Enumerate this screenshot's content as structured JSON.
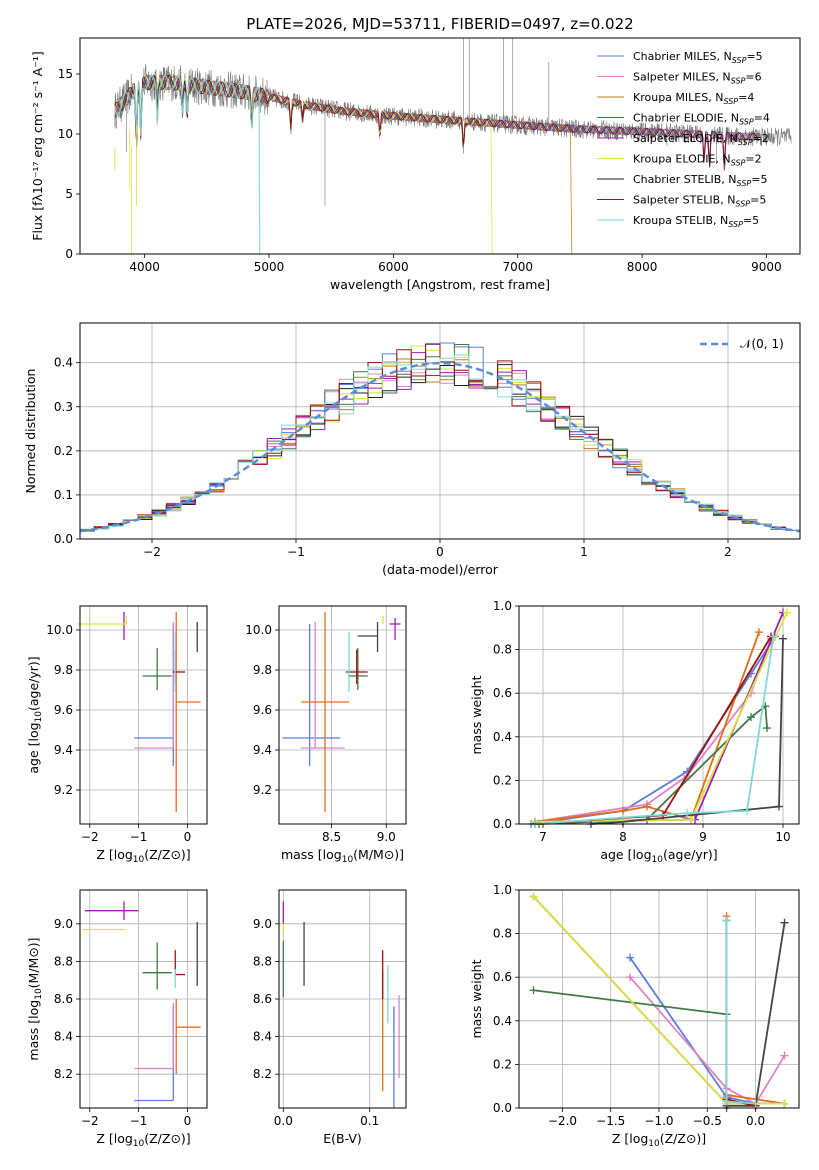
{
  "chart_data": [
    {
      "id": "spec",
      "type": "line",
      "title": "PLATE=2026, MJD=53711, FIBERID=0497, z=0.022",
      "xlabel": "wavelength [Angstrom, rest frame]",
      "ylabel": "Flux [fλ10⁻¹⁷ erg cm⁻² s⁻¹ A⁻¹]",
      "xlim": [
        3480,
        9270
      ],
      "ylim": [
        0,
        18
      ],
      "xticks": [
        4000,
        5000,
        6000,
        7000,
        8000,
        9000
      ],
      "yticks": [
        0,
        5,
        10,
        15
      ],
      "grid": false,
      "legend_position": "top-right",
      "legend": [
        {
          "base": "Chabrier MILES, N",
          "sub": "SSP",
          "val": "=5",
          "color": "#5b7fd6"
        },
        {
          "base": "Salpeter MILES, N",
          "sub": "SSP",
          "val": "=6",
          "color": "#dd83c6"
        },
        {
          "base": "Kroupa MILES, N",
          "sub": "SSP",
          "val": "=4",
          "color": "#c07a1e"
        },
        {
          "base": "Chabrier ELODIE, N",
          "sub": "SSP",
          "val": "=4",
          "color": "#3f7a46"
        },
        {
          "base": "Salpeter ELODIE, N",
          "sub": "SSP",
          "val": "=2",
          "color": "#9e1fb2"
        },
        {
          "base": "Kroupa ELODIE, N",
          "sub": "SSP",
          "val": "=2",
          "color": "#d9e63a"
        },
        {
          "base": "Chabrier STELIB, N",
          "sub": "SSP",
          "val": "=5",
          "color": "#222222"
        },
        {
          "base": "Salpeter STELIB, N",
          "sub": "SSP",
          "val": "=5",
          "color": "#9c1010"
        },
        {
          "base": "Kroupa STELIB, N",
          "sub": "SSP",
          "val": "=5",
          "color": "#7fd9d6"
        }
      ],
      "continuum": [
        [
          3750,
          11.8
        ],
        [
          3900,
          13.5
        ],
        [
          4000,
          14.3
        ],
        [
          4200,
          14.3
        ],
        [
          4500,
          13.9
        ],
        [
          4800,
          13.5
        ],
        [
          5000,
          13.1
        ],
        [
          5300,
          12.4
        ],
        [
          5600,
          11.9
        ],
        [
          6000,
          11.5
        ],
        [
          6400,
          11.2
        ],
        [
          6800,
          10.9
        ],
        [
          7200,
          10.6
        ],
        [
          7500,
          10.4
        ],
        [
          8000,
          10.2
        ],
        [
          8400,
          10.0
        ],
        [
          8800,
          9.8
        ],
        [
          9200,
          9.7
        ]
      ]
    },
    {
      "id": "resid",
      "type": "step",
      "title": "",
      "xlabel": "(data-model)/error",
      "ylabel": "Normed distribution",
      "xlim": [
        -2.5,
        2.5
      ],
      "ylim": [
        0,
        0.49
      ],
      "xticks": [
        -2,
        -1,
        0,
        1,
        2
      ],
      "yticks": [
        0.0,
        0.1,
        0.2,
        0.3,
        0.4
      ],
      "grid": true,
      "legend_position": "top-right",
      "legend_label": "𝒩(0, 1)",
      "bin_width": 0.1
    },
    {
      "id": "age_Z",
      "type": "errorbar",
      "xlabel_main": "Z [log",
      "xlabel_sub": "10",
      "xlabel_rest": "(Z/Z⊙)]",
      "ylabel_main": "age  [log",
      "ylabel_sub": "10",
      "ylabel_rest": "(age/yr)]",
      "xlim": [
        -2.2,
        0.4
      ],
      "ylim": [
        9.03,
        10.12
      ],
      "xticks": [
        -2,
        -1,
        0
      ],
      "yticks": [
        9.2,
        9.4,
        9.6,
        9.8,
        10.0
      ],
      "points": [
        {
          "x": -0.29,
          "y": 9.46,
          "xerr": [
            0.8,
            0.0
          ],
          "yerr": [
            0.14,
            0.57
          ],
          "color": "#5b7fd6"
        },
        {
          "x": -0.29,
          "y": 9.41,
          "xerr": [
            0.8,
            0.0
          ],
          "yerr": [
            0.0,
            0.63
          ],
          "color": "#dd83c6"
        },
        {
          "x": -0.23,
          "y": 9.64,
          "xerr": [
            0.0,
            0.5
          ],
          "yerr": [
            0.55,
            0.45
          ],
          "color": "#e36c1c"
        },
        {
          "x": -0.62,
          "y": 9.77,
          "xerr": [
            0.3,
            0.3
          ],
          "yerr": [
            0.07,
            0.14
          ],
          "color": "#3f7a46"
        },
        {
          "x": -1.3,
          "y": 10.03,
          "xerr": [
            0.0,
            0.0
          ],
          "yerr": [
            0.08,
            0.06
          ],
          "color": "#9e1fb2"
        },
        {
          "x": -1.25,
          "y": 10.03,
          "xerr": [
            1.0,
            0.0
          ],
          "yerr": [
            0.0,
            0.04
          ],
          "color": "#d9e63a"
        },
        {
          "x": 0.2,
          "y": 9.97,
          "xerr": [
            0.0,
            0.0
          ],
          "yerr": [
            0.08,
            0.07
          ],
          "color": "#444444"
        },
        {
          "x": -0.25,
          "y": 9.79,
          "xerr": [
            0.05,
            0.2
          ],
          "yerr": [
            0.06,
            0.11
          ],
          "color": "#9c1010"
        },
        {
          "x": -0.25,
          "y": 9.79,
          "xerr": [
            0.0,
            0.0
          ],
          "yerr": [
            0.1,
            0.2
          ],
          "color": "#7fd9d6"
        }
      ]
    },
    {
      "id": "age_mass",
      "type": "errorbar",
      "xlabel_main": "mass [log",
      "xlabel_sub": "10",
      "xlabel_rest": "(M/M⊙)]",
      "xlim": [
        8.02,
        9.18
      ],
      "ylim": [
        9.03,
        10.12
      ],
      "xticks": [
        8.5,
        9.0
      ],
      "yticks": [
        9.2,
        9.4,
        9.6,
        9.8,
        10.0
      ],
      "points": [
        {
          "x": 8.3,
          "y": 9.46,
          "xerr": [
            0.25,
            0.28
          ],
          "yerr": [
            0.14,
            0.57
          ],
          "color": "#5b7fd6"
        },
        {
          "x": 8.35,
          "y": 9.41,
          "xerr": [
            0.13,
            0.27
          ],
          "yerr": [
            0.0,
            0.63
          ],
          "color": "#dd83c6"
        },
        {
          "x": 8.44,
          "y": 9.64,
          "xerr": [
            0.22,
            0.22
          ],
          "yerr": [
            0.55,
            0.45
          ],
          "color": "#e36c1c"
        },
        {
          "x": 8.74,
          "y": 9.77,
          "xerr": [
            0.09,
            0.09
          ],
          "yerr": [
            0.07,
            0.14
          ],
          "color": "#3f7a46"
        },
        {
          "x": 9.08,
          "y": 10.03,
          "xerr": [
            0.05,
            0.05
          ],
          "yerr": [
            0.08,
            0.03
          ],
          "color": "#9e1fb2"
        },
        {
          "x": 8.97,
          "y": 10.03,
          "xerr": [
            0.0,
            0.0
          ],
          "yerr": [
            0.0,
            0.04
          ],
          "color": "#d9e63a"
        },
        {
          "x": 8.92,
          "y": 9.97,
          "xerr": [
            0.18,
            0.0
          ],
          "yerr": [
            0.08,
            0.07
          ],
          "color": "#444444"
        },
        {
          "x": 8.73,
          "y": 9.79,
          "xerr": [
            0.1,
            0.1
          ],
          "yerr": [
            0.06,
            0.11
          ],
          "color": "#9c1010"
        },
        {
          "x": 8.66,
          "y": 9.79,
          "xerr": [
            0.0,
            0.0
          ],
          "yerr": [
            0.1,
            0.2
          ],
          "color": "#7fd9d6"
        }
      ]
    },
    {
      "id": "mw_age",
      "type": "line",
      "xlabel_main": "age  [log",
      "xlabel_sub": "10",
      "xlabel_rest": "(age/yr)]",
      "ylabel": "mass weight",
      "xlim": [
        6.7,
        10.2
      ],
      "ylim": [
        0,
        1.0
      ],
      "xticks": [
        7,
        8,
        9,
        10
      ],
      "yticks": [
        0.0,
        0.2,
        0.4,
        0.6,
        0.8,
        1.0
      ],
      "grid": true,
      "series": [
        {
          "color": "#5b7fd6",
          "x": [
            6.85,
            8.0,
            8.8,
            9.6,
            9.9
          ],
          "y": [
            0.0,
            0.06,
            0.24,
            0.69,
            0.86
          ]
        },
        {
          "color": "#dd83c6",
          "x": [
            6.9,
            8.3,
            8.8,
            9.6,
            9.85
          ],
          "y": [
            0.01,
            0.09,
            0.22,
            0.6,
            0.85
          ]
        },
        {
          "color": "#e36c1c",
          "x": [
            6.9,
            8.0,
            8.3,
            8.85,
            9.7
          ],
          "y": [
            0.01,
            0.06,
            0.08,
            0.02,
            0.88
          ]
        },
        {
          "color": "#3f7a46",
          "x": [
            6.95,
            8.3,
            9.6,
            9.78,
            9.8
          ],
          "y": [
            0.0,
            0.02,
            0.49,
            0.54,
            0.44
          ]
        },
        {
          "color": "#9e1fb2",
          "x": [
            6.9,
            8.9,
            10.0
          ],
          "y": [
            0.01,
            0.02,
            0.97
          ]
        },
        {
          "color": "#d9e63a",
          "x": [
            6.9,
            8.85,
            10.05
          ],
          "y": [
            0.01,
            0.02,
            0.97
          ]
        },
        {
          "color": "#444444",
          "x": [
            7.6,
            8.0,
            9.95,
            10.0
          ],
          "y": [
            0.0,
            0.01,
            0.08,
            0.85
          ]
        },
        {
          "color": "#9c1010",
          "x": [
            6.9,
            8.5,
            9.85
          ],
          "y": [
            0.0,
            0.04,
            0.86
          ]
        },
        {
          "color": "#7fd9d6",
          "x": [
            6.9,
            8.0,
            8.8,
            9.55,
            9.88
          ],
          "y": [
            0.0,
            0.03,
            0.05,
            0.06,
            0.86
          ]
        }
      ]
    },
    {
      "id": "mass_Z",
      "type": "errorbar",
      "xlabel_main": "Z [log",
      "xlabel_sub": "10",
      "xlabel_rest": "(Z/Z⊙)]",
      "ylabel_main": "mass [log",
      "ylabel_sub": "10",
      "ylabel_rest": "(M/M⊙)]",
      "xlim": [
        -2.2,
        0.4
      ],
      "ylim": [
        8.02,
        9.18
      ],
      "xticks": [
        -2,
        -1,
        0
      ],
      "yticks": [
        8.2,
        8.4,
        8.6,
        8.8,
        9.0
      ],
      "points": [
        {
          "x": -0.29,
          "y": 8.06,
          "xerr": [
            0.8,
            0.0
          ],
          "yerr": [
            0.0,
            0.5
          ],
          "color": "#5b7fd6"
        },
        {
          "x": -0.29,
          "y": 8.23,
          "xerr": [
            0.8,
            0.0
          ],
          "yerr": [
            0.0,
            0.35
          ],
          "color": "#dd83c6"
        },
        {
          "x": -0.23,
          "y": 8.45,
          "xerr": [
            0.0,
            0.5
          ],
          "yerr": [
            0.25,
            0.15
          ],
          "color": "#e36c1c"
        },
        {
          "x": -0.62,
          "y": 8.74,
          "xerr": [
            0.3,
            0.3
          ],
          "yerr": [
            0.09,
            0.16
          ],
          "color": "#3f7a46"
        },
        {
          "x": -1.3,
          "y": 9.07,
          "xerr": [
            0.8,
            0.3
          ],
          "yerr": [
            0.05,
            0.05
          ],
          "color": "#9e1fb2"
        },
        {
          "x": -1.25,
          "y": 8.97,
          "xerr": [
            0.9,
            0.0
          ],
          "yerr": [
            0.0,
            0.0
          ],
          "color": "#d9e63a"
        },
        {
          "x": 0.2,
          "y": 8.92,
          "xerr": [
            0.0,
            0.0
          ],
          "yerr": [
            0.25,
            0.09
          ],
          "color": "#444444"
        },
        {
          "x": -0.25,
          "y": 8.73,
          "xerr": [
            0.0,
            0.2
          ],
          "yerr": [
            0.0,
            0.13
          ],
          "color": "#9c1010"
        },
        {
          "x": -0.25,
          "y": 8.66,
          "xerr": [
            0.0,
            0.0
          ],
          "yerr": [
            0.0,
            0.1
          ],
          "color": "#7fd9d6"
        }
      ]
    },
    {
      "id": "mass_ebv",
      "type": "errorbar",
      "xlabel_main": "E(B-V)",
      "xlim": [
        -0.005,
        0.142
      ],
      "ylim": [
        8.02,
        9.18
      ],
      "xticks": [
        0.0,
        0.1
      ],
      "yticks": [
        8.2,
        8.4,
        8.6,
        8.8,
        9.0
      ],
      "points": [
        {
          "x": 0.0,
          "y": 8.75,
          "xerr": [
            0.0,
            0.0
          ],
          "yerr": [
            0.14,
            0.16
          ],
          "color": "#3f7a46"
        },
        {
          "x": 0.0,
          "y": 9.05,
          "xerr": [
            0.0,
            0.0
          ],
          "yerr": [
            0.05,
            0.07
          ],
          "color": "#9e1fb2"
        },
        {
          "x": 0.0,
          "y": 8.97,
          "xerr": [
            0.0,
            0.0
          ],
          "yerr": [
            0.02,
            0.03
          ],
          "color": "#d9e63a"
        },
        {
          "x": 0.024,
          "y": 8.92,
          "xerr": [
            0.0,
            0.0
          ],
          "yerr": [
            0.25,
            0.09
          ],
          "color": "#444444"
        },
        {
          "x": 0.115,
          "y": 8.43,
          "xerr": [
            0.0,
            0.0
          ],
          "yerr": [
            0.32,
            0.32
          ],
          "color": "#e36c1c"
        },
        {
          "x": 0.115,
          "y": 8.73,
          "xerr": [
            0.0,
            0.0
          ],
          "yerr": [
            0.13,
            0.13
          ],
          "color": "#9c1010"
        },
        {
          "x": 0.121,
          "y": 8.62,
          "xerr": [
            0.0,
            0.0
          ],
          "yerr": [
            0.15,
            0.16
          ],
          "color": "#7fd9d6"
        },
        {
          "x": 0.128,
          "y": 8.29,
          "xerr": [
            0.0,
            0.0
          ],
          "yerr": [
            0.27,
            0.27
          ],
          "color": "#5b7fd6"
        },
        {
          "x": 0.134,
          "y": 8.4,
          "xerr": [
            0.0,
            0.0
          ],
          "yerr": [
            0.22,
            0.22
          ],
          "color": "#dd83c6"
        }
      ]
    },
    {
      "id": "mw_Z",
      "type": "line",
      "xlabel_main": "Z [log",
      "xlabel_sub": "10",
      "xlabel_rest": "(Z/Z⊙)]",
      "ylabel": "mass weight",
      "xlim": [
        -2.45,
        0.45
      ],
      "ylim": [
        0,
        1.0
      ],
      "xticks": [
        -2.0,
        -1.5,
        -1.0,
        -0.5,
        0.0
      ],
      "yticks": [
        0.0,
        0.2,
        0.4,
        0.6,
        0.8,
        1.0
      ],
      "grid": true,
      "series": [
        {
          "color": "#5b7fd6",
          "x": [
            -1.3,
            -0.3,
            0.0
          ],
          "y": [
            0.69,
            0.05,
            0.02
          ]
        },
        {
          "color": "#dd83c6",
          "x": [
            -1.3,
            -0.3,
            0.0,
            0.3
          ],
          "y": [
            0.6,
            0.09,
            0.02,
            0.24
          ]
        },
        {
          "color": "#e36c1c",
          "x": [
            -0.3,
            -0.3,
            0.3
          ],
          "y": [
            0.88,
            0.06,
            0.02
          ]
        },
        {
          "color": "#3f7a46",
          "x": [
            -2.3,
            -0.3,
            -0.3
          ],
          "y": [
            0.54,
            0.43,
            0.0
          ]
        },
        {
          "color": "#9e1fb2",
          "x": [
            -2.3,
            -0.3,
            0.3
          ],
          "y": [
            0.97,
            0.02,
            0.02
          ]
        },
        {
          "color": "#d9e63a",
          "x": [
            -2.3,
            -0.3,
            0.3
          ],
          "y": [
            0.97,
            0.02,
            0.02
          ]
        },
        {
          "color": "#444444",
          "x": [
            -0.3,
            0.0,
            0.3
          ],
          "y": [
            0.01,
            0.01,
            0.85
          ]
        },
        {
          "color": "#9c1010",
          "x": [
            -0.3,
            -0.3,
            0.0
          ],
          "y": [
            0.86,
            0.04,
            0.01
          ]
        },
        {
          "color": "#7fd9d6",
          "x": [
            -0.3,
            -0.3,
            0.0
          ],
          "y": [
            0.86,
            0.03,
            0.02
          ]
        }
      ]
    }
  ]
}
